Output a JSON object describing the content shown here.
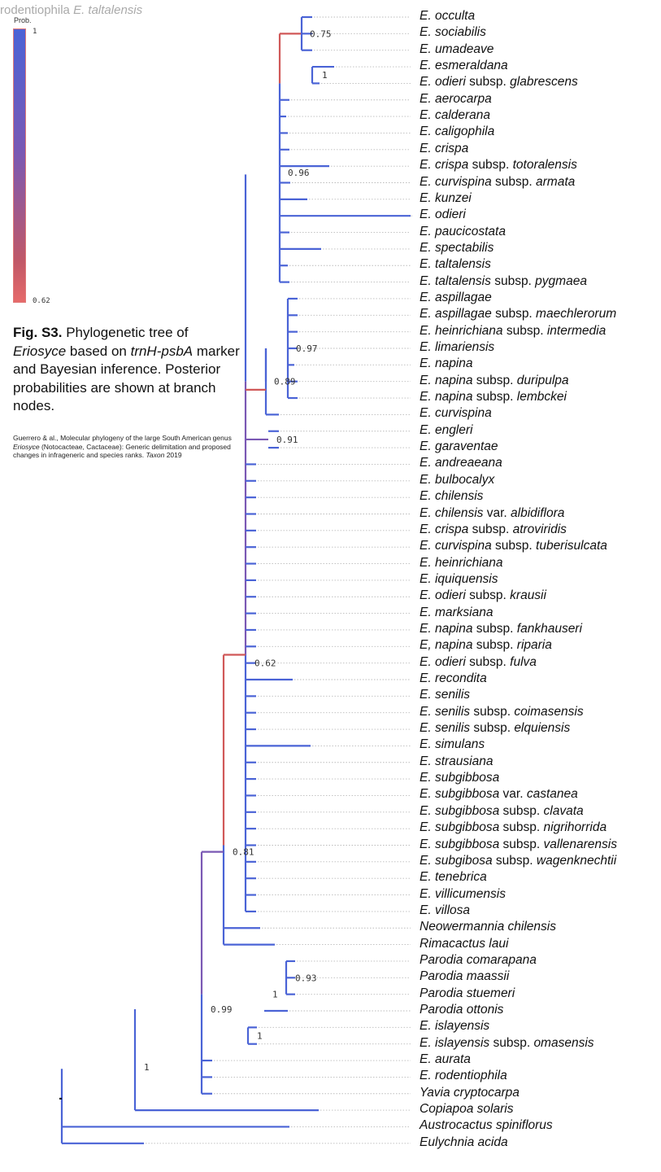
{
  "title": {
    "plain": "rodentiophila ",
    "italic": "E. taltalensis"
  },
  "legend": {
    "label": "Prob.",
    "max": "1",
    "min": "0.62",
    "color_max": "#4a63d6",
    "color_min": "#e66a6a"
  },
  "caption": {
    "fig": "Fig. S3.",
    "text1": " Phylogenetic tree of ",
    "genus": "Eriosyce",
    "text2": " based on ",
    "marker": "trnH-psbA",
    "text3": " marker and Bayesian inference. Posterior probabilities are shown at branch nodes."
  },
  "citation": {
    "text1": "Guerrero & al., Molecular phylogeny of the large South American genus ",
    "genus": "Eriosyce",
    "text2": " (Notocacteae, Cactaceae): Generic delimitation and proposed changes in infrageneric and species ranks. ",
    "journal": "Taxon",
    "year": " 2019"
  },
  "tips": [
    {
      "i": "E. occulta",
      "r": ""
    },
    {
      "i": "E. sociabilis",
      "r": ""
    },
    {
      "i": "E. umadeave",
      "r": ""
    },
    {
      "i": "E. esmeraldana",
      "r": ""
    },
    {
      "i": "E. odieri",
      "r": " subsp. ",
      "i2": "glabrescens"
    },
    {
      "i": "E. aerocarpa",
      "r": ""
    },
    {
      "i": "E. calderana",
      "r": ""
    },
    {
      "i": "E. caligophila",
      "r": ""
    },
    {
      "i": "E. crispa",
      "r": ""
    },
    {
      "i": "E. crispa",
      "r": " subsp. ",
      "i2": "totoralensis"
    },
    {
      "i": "E. curvispina",
      "r": " subsp. ",
      "i2": "armata"
    },
    {
      "i": "E. kunzei",
      "r": ""
    },
    {
      "i": "E. odieri",
      "r": ""
    },
    {
      "i": "E. paucicostata",
      "r": ""
    },
    {
      "i": "E. spectabilis",
      "r": ""
    },
    {
      "i": "E. taltalensis",
      "r": ""
    },
    {
      "i": "E. taltalensis",
      "r": " subsp. ",
      "i2": "pygmaea"
    },
    {
      "i": "E. aspillagae",
      "r": ""
    },
    {
      "i": "E. aspillagae",
      "r": " subsp. ",
      "i2": "maechlerorum"
    },
    {
      "i": "E. heinrichiana",
      "r": " subsp. ",
      "i2": "intermedia"
    },
    {
      "i": "E. limariensis",
      "r": ""
    },
    {
      "i": "E. napina",
      "r": ""
    },
    {
      "i": "E. napina",
      "r": " subsp. ",
      "i2": "duripulpa"
    },
    {
      "i": "E. napina",
      "r": " subsp. ",
      "i2": "lembckei"
    },
    {
      "i": "E. curvispina",
      "r": ""
    },
    {
      "i": "E. engleri",
      "r": ""
    },
    {
      "i": "E. garaventae",
      "r": ""
    },
    {
      "i": "E. andreaeana",
      "r": ""
    },
    {
      "i": "E. bulbocalyx",
      "r": ""
    },
    {
      "i": "E. chilensis",
      "r": ""
    },
    {
      "i": "E. chilensis",
      "r": " var. ",
      "i2": "albidiflora"
    },
    {
      "i": "E. crispa",
      "r": " subsp. ",
      "i2": "atroviridis"
    },
    {
      "i": "E. curvispina",
      "r": " subsp. ",
      "i2": "tuberisulcata"
    },
    {
      "i": "E. heinrichiana",
      "r": ""
    },
    {
      "i": "E. iquiquensis",
      "r": ""
    },
    {
      "i": "E. odieri",
      "r": " subsp. ",
      "i2": "krausii"
    },
    {
      "i": "E. marksiana",
      "r": ""
    },
    {
      "i": "E. napina",
      "r": " subsp. ",
      "i2": "fankhauseri"
    },
    {
      "i": "E, napina",
      "r": " subsp. ",
      "i2": "riparia"
    },
    {
      "i": "E. odieri",
      "r": " subsp. ",
      "i2": "fulva"
    },
    {
      "i": "E. recondita",
      "r": ""
    },
    {
      "i": "E. senilis",
      "r": ""
    },
    {
      "i": "E. senilis",
      "r": " subsp. ",
      "i2": "coimasensis"
    },
    {
      "i": "E. senilis",
      "r": " subsp. ",
      "i2": "elquiensis"
    },
    {
      "i": "E. simulans",
      "r": ""
    },
    {
      "i": "E. strausiana",
      "r": ""
    },
    {
      "i": "E. subgibbosa",
      "r": ""
    },
    {
      "i": "E. subgibbosa",
      "r": " var. ",
      "i2": "castanea"
    },
    {
      "i": "E. subgibbosa",
      "r": " subsp. ",
      "i2": "clavata"
    },
    {
      "i": "E. subgibbosa",
      "r": " subsp. ",
      "i2": "nigrihorrida"
    },
    {
      "i": "E. subgibbosa",
      "r": " subsp. ",
      "i2": "vallenarensis"
    },
    {
      "i": "E. subgibosa",
      "r": " subsp. ",
      "i2": "wagenknechtii"
    },
    {
      "i": "E. tenebrica",
      "r": ""
    },
    {
      "i": "E. villicumensis",
      "r": ""
    },
    {
      "i": "E. villosa",
      "r": ""
    },
    {
      "n": "Neowermannia chilensis"
    },
    {
      "n": "Rimacactus laui"
    },
    {
      "n": "Parodia comarapana"
    },
    {
      "n": "Parodia maassii"
    },
    {
      "n": "Parodia stuemeri"
    },
    {
      "n": "Parodia ottonis"
    },
    {
      "i": "E. islayensis",
      "r": ""
    },
    {
      "i": "E. islayensis",
      "r": " subsp. ",
      "i2": "omasensis"
    },
    {
      "i": "E. aurata",
      "r": ""
    },
    {
      "i": "E. rodentiophila",
      "r": ""
    },
    {
      "n": "Yavia cryptocarpa"
    },
    {
      "n": "Copiapoa solaris"
    },
    {
      "n": "Austrocactus spiniflorus"
    },
    {
      "n": "Eulychnia acida"
    }
  ],
  "support_labels": [
    "0.75",
    "1",
    "0.96",
    "0.97",
    "0.89",
    "0.91",
    "0.62",
    "0.81",
    "0.93",
    "1",
    "0.99",
    "1",
    "1"
  ],
  "colors": {
    "high": "#4a63d6",
    "mid": "#7a58b4",
    "low": "#d05858",
    "leader": "#bbbbbb"
  }
}
